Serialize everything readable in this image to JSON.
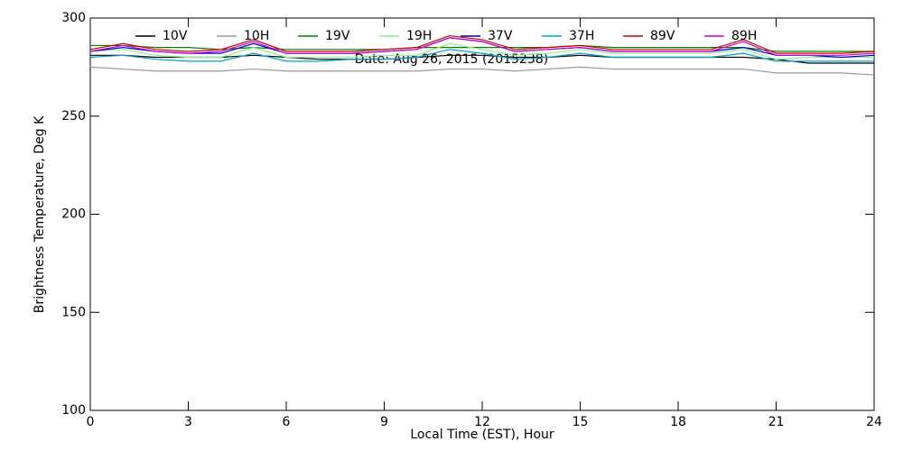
{
  "chart_data": {
    "type": "line",
    "annotation": "Date: Aug 26, 2015 (2015238)",
    "x_label": "Local Time (EST), Hour",
    "y_label": "Brightness Temperature, Deg K",
    "x": [
      0,
      1,
      2,
      3,
      4,
      5,
      6,
      7,
      8,
      9,
      10,
      11,
      12,
      13,
      14,
      15,
      16,
      17,
      18,
      19,
      20,
      21,
      22,
      23,
      24
    ],
    "xlim": [
      0,
      24
    ],
    "xticks": [
      0,
      3,
      6,
      9,
      12,
      15,
      18,
      21,
      24
    ],
    "ylim": [
      100,
      300
    ],
    "yticks": [
      100,
      150,
      200,
      250,
      300
    ],
    "grid": false,
    "legend": "top",
    "series": [
      {
        "name": "10V",
        "color": "#000000",
        "values": [
          281,
          281,
          280,
          280,
          280,
          281,
          280,
          279,
          279,
          279,
          280,
          281,
          281,
          280,
          280,
          281,
          280,
          280,
          280,
          280,
          280,
          279,
          277,
          277,
          277
        ]
      },
      {
        "name": "10H",
        "color": "#999999",
        "values": [
          275,
          274,
          273,
          273,
          273,
          274,
          273,
          273,
          273,
          273,
          273,
          274,
          274,
          273,
          274,
          275,
          274,
          274,
          274,
          274,
          274,
          272,
          272,
          272,
          271
        ]
      },
      {
        "name": "19V",
        "color": "#008000",
        "values": [
          286,
          286,
          285,
          285,
          284,
          285,
          284,
          284,
          284,
          284,
          285,
          285,
          285,
          285,
          285,
          286,
          285,
          285,
          285,
          285,
          285,
          283,
          283,
          283,
          283
        ]
      },
      {
        "name": "19H",
        "color": "#90ee90",
        "values": [
          283,
          284,
          281,
          280,
          280,
          285,
          280,
          280,
          280,
          281,
          281,
          287,
          284,
          281,
          282,
          284,
          282,
          282,
          282,
          282,
          284,
          279,
          280,
          280,
          280
        ]
      },
      {
        "name": "37V",
        "color": "#0000cc",
        "values": [
          283,
          285,
          283,
          282,
          282,
          287,
          282,
          282,
          282,
          283,
          284,
          290,
          288,
          283,
          284,
          285,
          283,
          283,
          283,
          283,
          285,
          281,
          281,
          280,
          281
        ]
      },
      {
        "name": "37H",
        "color": "#00a0c8",
        "values": [
          280,
          281,
          279,
          278,
          278,
          282,
          278,
          278,
          279,
          279,
          280,
          284,
          282,
          279,
          280,
          282,
          280,
          280,
          280,
          280,
          282,
          278,
          278,
          278,
          278
        ]
      },
      {
        "name": "89V",
        "color": "#cc0000",
        "values": [
          284,
          287,
          284,
          283,
          284,
          289,
          283,
          283,
          283,
          284,
          285,
          291,
          289,
          284,
          285,
          286,
          284,
          284,
          284,
          284,
          289,
          282,
          282,
          282,
          283
        ]
      },
      {
        "name": "89H",
        "color": "#cc00cc",
        "values": [
          283,
          286,
          283,
          282,
          283,
          288,
          282,
          282,
          282,
          283,
          284,
          290,
          288,
          283,
          284,
          285,
          283,
          283,
          283,
          283,
          288,
          281,
          281,
          281,
          282
        ]
      }
    ]
  }
}
